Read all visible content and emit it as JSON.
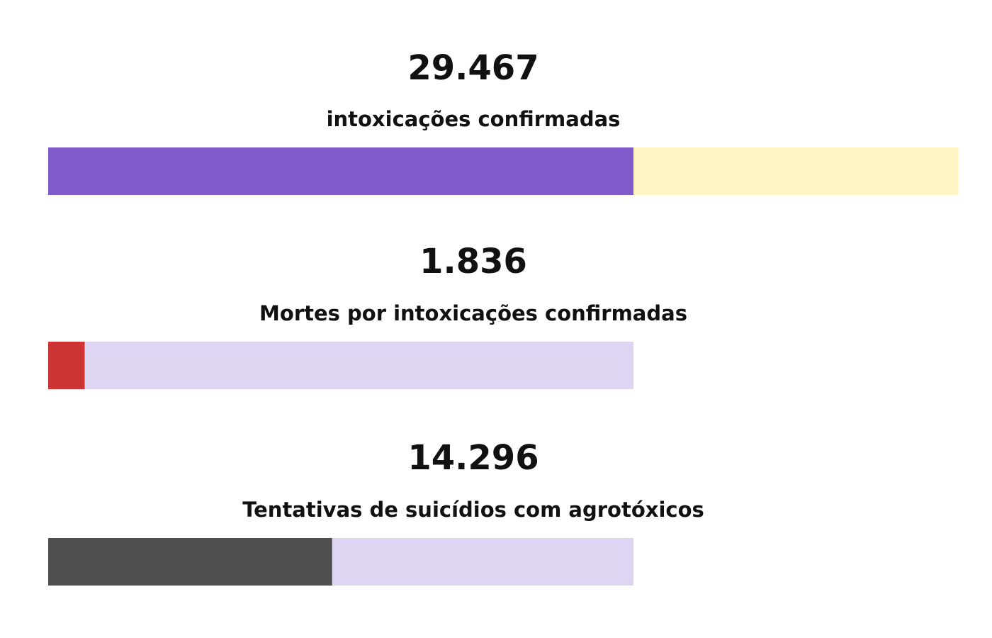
{
  "chart_data": {
    "type": "bar",
    "orientation": "horizontal",
    "items": [
      {
        "value_text": "29.467",
        "label": "intoxicações confirmadas",
        "value": 29467,
        "total": 45830,
        "fill_color": "#7E5ACB",
        "track_color": "#FFF4C3"
      },
      {
        "value_text": "1.836",
        "label": "Mortes por intoxicações confirmadas",
        "value": 1836,
        "total": 29467,
        "fill_color": "#CC3333",
        "track_color": "#DED5F2"
      },
      {
        "value_text": "14.296",
        "label": "Tentativas de suicídios com agrotóxicos",
        "value": 14296,
        "total": 29467,
        "fill_color": "#4F4F4F",
        "track_color": "#DED5F2"
      }
    ]
  }
}
